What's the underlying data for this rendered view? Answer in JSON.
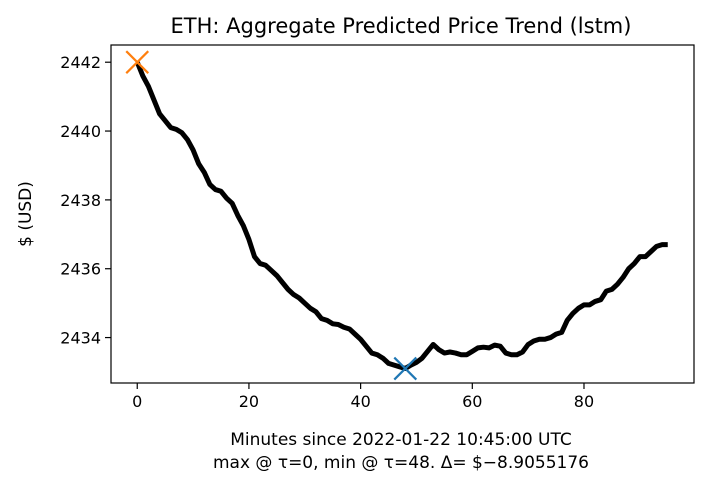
{
  "chart_data": {
    "type": "line",
    "title": "ETH: Aggregate Predicted Price Trend (lstm)",
    "xlabel": "Minutes since 2022-01-22 10:45:00 UTC",
    "xlabel_line2": "max @ τ=0, min @ τ=48. Δ= $−8.9055176",
    "ylabel": "$ (USD)",
    "xlim": [
      -4.7,
      99.7
    ],
    "ylim": [
      2432.68,
      2442.5
    ],
    "xticks": [
      0,
      20,
      40,
      60,
      80
    ],
    "yticks": [
      2434,
      2436,
      2438,
      2440,
      2442
    ],
    "grid": false,
    "series": [
      {
        "color": "#000000",
        "x": [
          0,
          1,
          2,
          3,
          4,
          5,
          6,
          7,
          8,
          9,
          10,
          11,
          12,
          13,
          14,
          15,
          16,
          17,
          18,
          19,
          20,
          21,
          22,
          23,
          24,
          25,
          26,
          27,
          28,
          29,
          30,
          31,
          32,
          33,
          34,
          35,
          36,
          37,
          38,
          39,
          40,
          41,
          42,
          43,
          44,
          45,
          46,
          47,
          48,
          49,
          50,
          51,
          52,
          53,
          54,
          55,
          56,
          57,
          58,
          59,
          60,
          61,
          62,
          63,
          64,
          65,
          66,
          67,
          68,
          69,
          70,
          71,
          72,
          73,
          74,
          75,
          76,
          77,
          78,
          79,
          80,
          81,
          82,
          83,
          84,
          85,
          86,
          87,
          88,
          89,
          90,
          91,
          92,
          93,
          94,
          95
        ],
        "values": [
          2442.0,
          2441.6,
          2441.3,
          2440.9,
          2440.5,
          2440.3,
          2440.1,
          2440.05,
          2439.95,
          2439.75,
          2439.45,
          2439.05,
          2438.8,
          2438.45,
          2438.3,
          2438.25,
          2438.05,
          2437.9,
          2437.55,
          2437.25,
          2436.85,
          2436.35,
          2436.15,
          2436.1,
          2435.95,
          2435.8,
          2435.6,
          2435.4,
          2435.25,
          2435.15,
          2435.0,
          2434.85,
          2434.75,
          2434.55,
          2434.5,
          2434.4,
          2434.38,
          2434.3,
          2434.25,
          2434.1,
          2433.95,
          2433.75,
          2433.55,
          2433.5,
          2433.4,
          2433.25,
          2433.2,
          2433.15,
          2433.1,
          2433.2,
          2433.28,
          2433.4,
          2433.6,
          2433.8,
          2433.65,
          2433.55,
          2433.58,
          2433.55,
          2433.5,
          2433.5,
          2433.6,
          2433.7,
          2433.72,
          2433.7,
          2433.78,
          2433.75,
          2433.55,
          2433.5,
          2433.5,
          2433.58,
          2433.8,
          2433.9,
          2433.95,
          2433.95,
          2434.0,
          2434.1,
          2434.15,
          2434.5,
          2434.7,
          2434.85,
          2434.95,
          2434.95,
          2435.05,
          2435.1,
          2435.35,
          2435.4,
          2435.55,
          2435.75,
          2436.0,
          2436.15,
          2436.35,
          2436.35,
          2436.5,
          2436.65,
          2436.7,
          2436.7
        ]
      }
    ],
    "markers": [
      {
        "name": "max",
        "x": 0,
        "y": 2442.0,
        "symbol": "x",
        "color": "#ff7f0e"
      },
      {
        "name": "min",
        "x": 48,
        "y": 2433.1,
        "symbol": "x",
        "color": "#1f77b4"
      }
    ]
  }
}
